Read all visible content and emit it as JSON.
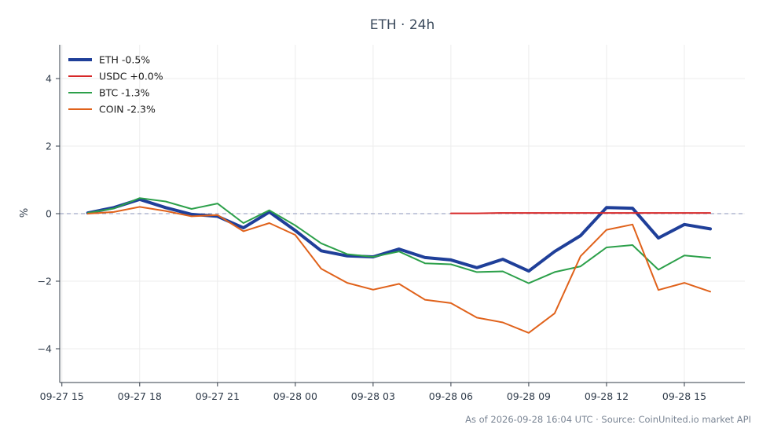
{
  "chart_data": {
    "type": "line",
    "title": "ETH · 24h",
    "ylabel": "%",
    "xlabel": "",
    "x": [
      "09-27 16:00",
      "09-27 17:00",
      "09-27 18:00",
      "09-27 19:00",
      "09-27 20:00",
      "09-27 21:00",
      "09-27 22:00",
      "09-27 23:00",
      "09-28 00:00",
      "09-28 01:00",
      "09-28 02:00",
      "09-28 03:00",
      "09-28 04:00",
      "09-28 05:00",
      "09-28 06:00",
      "09-28 07:00",
      "09-28 08:00",
      "09-28 09:00",
      "09-28 10:00",
      "09-28 11:00",
      "09-28 12:00",
      "09-28 13:00",
      "09-28 14:00",
      "09-28 15:00",
      "09-28 16:00"
    ],
    "xticks": [
      "09-27 15",
      "09-27 18",
      "09-27 21",
      "09-28 00",
      "09-28 03",
      "09-28 06",
      "09-28 09",
      "09-28 12",
      "09-28 15"
    ],
    "yticks": [
      "−4",
      "−2",
      "0",
      "2",
      "4"
    ],
    "ylim": [
      -5,
      5
    ],
    "grid": true,
    "zero_line": true,
    "legend_position": "top-left",
    "series": [
      {
        "name": "ETH -0.5%",
        "color": "#1f3f99",
        "width": 4,
        "values": [
          0.02,
          0.18,
          0.42,
          0.18,
          -0.02,
          -0.08,
          -0.42,
          0.05,
          -0.5,
          -1.1,
          -1.25,
          -1.28,
          -1.05,
          -1.3,
          -1.37,
          -1.6,
          -1.35,
          -1.7,
          -1.12,
          -0.65,
          0.18,
          0.16,
          -0.72,
          -0.32,
          -0.45
        ]
      },
      {
        "name": "USDC +0.0%",
        "color": "#d62728",
        "width": 2,
        "values": [
          null,
          null,
          null,
          null,
          null,
          null,
          null,
          null,
          null,
          null,
          null,
          null,
          null,
          null,
          0.01,
          0.01,
          0.02,
          0.02,
          0.02,
          0.02,
          0.02,
          0.02,
          0.02,
          0.02,
          0.02
        ]
      },
      {
        "name": "BTC -1.3%",
        "color": "#2ca04a",
        "width": 2,
        "values": [
          0.02,
          0.15,
          0.46,
          0.36,
          0.14,
          0.3,
          -0.28,
          0.1,
          -0.35,
          -0.88,
          -1.2,
          -1.28,
          -1.12,
          -1.47,
          -1.5,
          -1.73,
          -1.71,
          -2.06,
          -1.73,
          -1.56,
          -1.0,
          -0.93,
          -1.66,
          -1.24,
          -1.31
        ]
      },
      {
        "name": "COIN -2.3%",
        "color": "#e0621b",
        "width": 2,
        "values": [
          0.0,
          0.05,
          0.2,
          0.08,
          -0.08,
          -0.04,
          -0.52,
          -0.28,
          -0.63,
          -1.63,
          -2.05,
          -2.25,
          -2.08,
          -2.55,
          -2.65,
          -3.08,
          -3.22,
          -3.53,
          -2.95,
          -1.26,
          -0.48,
          -0.32,
          -2.26,
          -2.05,
          -2.31
        ]
      }
    ]
  },
  "footer": "As of 2026-09-28 16:04 UTC · Source: CoinUnited.io market API"
}
